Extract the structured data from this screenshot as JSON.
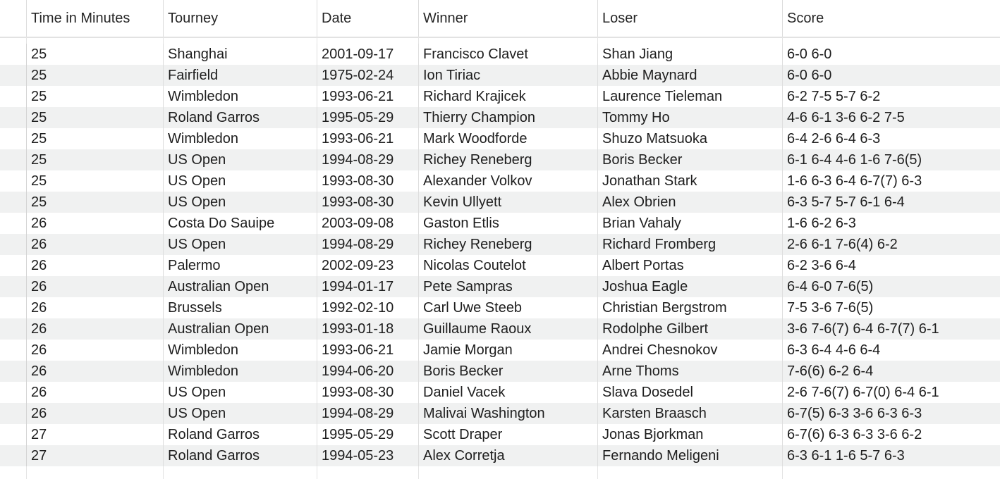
{
  "table": {
    "columns": [
      "Time in Minutes",
      "Tourney",
      "Date",
      "Winner",
      "Loser",
      "Score"
    ],
    "rows": [
      [
        "25",
        "Shanghai",
        "2001-09-17",
        "Francisco Clavet",
        "Shan Jiang",
        "6-0 6-0"
      ],
      [
        "25",
        "Fairfield",
        "1975-02-24",
        "Ion Tiriac",
        "Abbie Maynard",
        "6-0 6-0"
      ],
      [
        "25",
        "Wimbledon",
        "1993-06-21",
        "Richard Krajicek",
        "Laurence Tieleman",
        "6-2 7-5 5-7 6-2"
      ],
      [
        "25",
        "Roland Garros",
        "1995-05-29",
        "Thierry Champion",
        "Tommy Ho",
        "4-6 6-1 3-6 6-2 7-5"
      ],
      [
        "25",
        "Wimbledon",
        "1993-06-21",
        "Mark Woodforde",
        "Shuzo Matsuoka",
        "6-4 2-6 6-4 6-3"
      ],
      [
        "25",
        "US Open",
        "1994-08-29",
        "Richey Reneberg",
        "Boris Becker",
        "6-1 6-4 4-6 1-6 7-6(5)"
      ],
      [
        "25",
        "US Open",
        "1993-08-30",
        "Alexander Volkov",
        "Jonathan Stark",
        "1-6 6-3 6-4 6-7(7) 6-3"
      ],
      [
        "25",
        "US Open",
        "1993-08-30",
        "Kevin Ullyett",
        "Alex Obrien",
        "6-3 5-7 5-7 6-1 6-4"
      ],
      [
        "26",
        "Costa Do Sauipe",
        "2003-09-08",
        "Gaston Etlis",
        "Brian Vahaly",
        "1-6 6-2 6-3"
      ],
      [
        "26",
        "US Open",
        "1994-08-29",
        "Richey Reneberg",
        "Richard Fromberg",
        "2-6 6-1 7-6(4) 6-2"
      ],
      [
        "26",
        "Palermo",
        "2002-09-23",
        "Nicolas Coutelot",
        "Albert Portas",
        "6-2 3-6 6-4"
      ],
      [
        "26",
        "Australian Open",
        "1994-01-17",
        "Pete Sampras",
        "Joshua Eagle",
        "6-4 6-0 7-6(5)"
      ],
      [
        "26",
        "Brussels",
        "1992-02-10",
        "Carl Uwe Steeb",
        "Christian Bergstrom",
        "7-5 3-6 7-6(5)"
      ],
      [
        "26",
        "Australian Open",
        "1993-01-18",
        "Guillaume Raoux",
        "Rodolphe Gilbert",
        "3-6 7-6(7) 6-4 6-7(7) 6-1"
      ],
      [
        "26",
        "Wimbledon",
        "1993-06-21",
        "Jamie Morgan",
        "Andrei Chesnokov",
        "6-3 6-4 4-6 6-4"
      ],
      [
        "26",
        "Wimbledon",
        "1994-06-20",
        "Boris Becker",
        "Arne Thoms",
        "7-6(6) 6-2 6-4"
      ],
      [
        "26",
        "US Open",
        "1993-08-30",
        "Daniel Vacek",
        "Slava Dosedel",
        "2-6 7-6(7) 6-7(0) 6-4 6-1"
      ],
      [
        "26",
        "US Open",
        "1994-08-29",
        "Malivai Washington",
        "Karsten Braasch",
        "6-7(5) 6-3 3-6 6-3 6-3"
      ],
      [
        "27",
        "Roland Garros",
        "1995-05-29",
        "Scott Draper",
        "Jonas Bjorkman",
        "6-7(6) 6-3 6-3 3-6 6-2"
      ],
      [
        "27",
        "Roland Garros",
        "1994-05-23",
        "Alex Corretja",
        "Fernando Meligeni",
        "6-3 6-1 1-6 5-7 6-3"
      ]
    ]
  },
  "colors": {
    "row_alt": "#f0f1f1",
    "grid_line": "#dedede",
    "text": "#1e1e1e"
  }
}
